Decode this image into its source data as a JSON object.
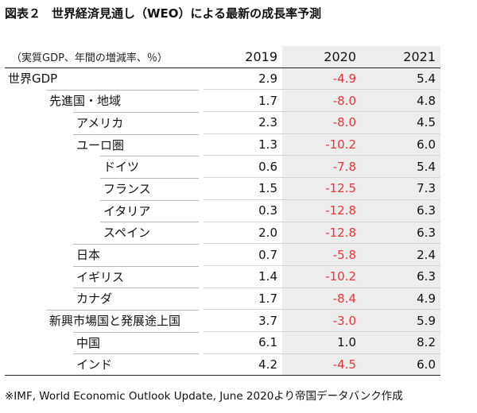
{
  "title": {
    "prefix": "図表２",
    "text": "世界経済見通し（WEO）による最新の成長率予測"
  },
  "table": {
    "unit_label": "（実質GDP、年間の増減率、％）",
    "years": [
      "2019",
      "2020",
      "2021"
    ],
    "rows": [
      {
        "label": "世界GDP",
        "indent": 0,
        "v2019": "2.9",
        "v2020": "-4.9",
        "v2021": "5.4"
      },
      {
        "label": "先進国・地域",
        "indent": 1,
        "v2019": "1.7",
        "v2020": "-8.0",
        "v2021": "4.8"
      },
      {
        "label": "アメリカ",
        "indent": 2,
        "v2019": "2.3",
        "v2020": "-8.0",
        "v2021": "4.5"
      },
      {
        "label": "ユーロ圏",
        "indent": 2,
        "v2019": "1.3",
        "v2020": "-10.2",
        "v2021": "6.0"
      },
      {
        "label": "ドイツ",
        "indent": 3,
        "v2019": "0.6",
        "v2020": "-7.8",
        "v2021": "5.4"
      },
      {
        "label": "フランス",
        "indent": 3,
        "v2019": "1.5",
        "v2020": "-12.5",
        "v2021": "7.3"
      },
      {
        "label": "イタリア",
        "indent": 3,
        "v2019": "0.3",
        "v2020": "-12.8",
        "v2021": "6.3"
      },
      {
        "label": "スペイン",
        "indent": 3,
        "v2019": "2.0",
        "v2020": "-12.8",
        "v2021": "6.3"
      },
      {
        "label": "日本",
        "indent": 2,
        "v2019": "0.7",
        "v2020": "-5.8",
        "v2021": "2.4"
      },
      {
        "label": "イギリス",
        "indent": 2,
        "v2019": "1.4",
        "v2020": "-10.2",
        "v2021": "6.3"
      },
      {
        "label": "カナダ",
        "indent": 2,
        "v2019": "1.7",
        "v2020": "-8.4",
        "v2021": "4.9"
      },
      {
        "label": "新興市場国と発展途上国",
        "indent": 1,
        "v2019": "3.7",
        "v2020": "-3.0",
        "v2021": "5.9"
      },
      {
        "label": "中国",
        "indent": 2,
        "v2019": "6.1",
        "v2020": "1.0",
        "v2021": "8.2"
      },
      {
        "label": "インド",
        "indent": 2,
        "v2019": "4.2",
        "v2020": "-4.5",
        "v2021": "6.0"
      }
    ]
  },
  "note": "※IMF, World Economic Outlook Update, June 2020より帝国データバンク作成",
  "colors": {
    "negative": "#e8353a",
    "shade": "#ededed",
    "text": "#111111"
  }
}
